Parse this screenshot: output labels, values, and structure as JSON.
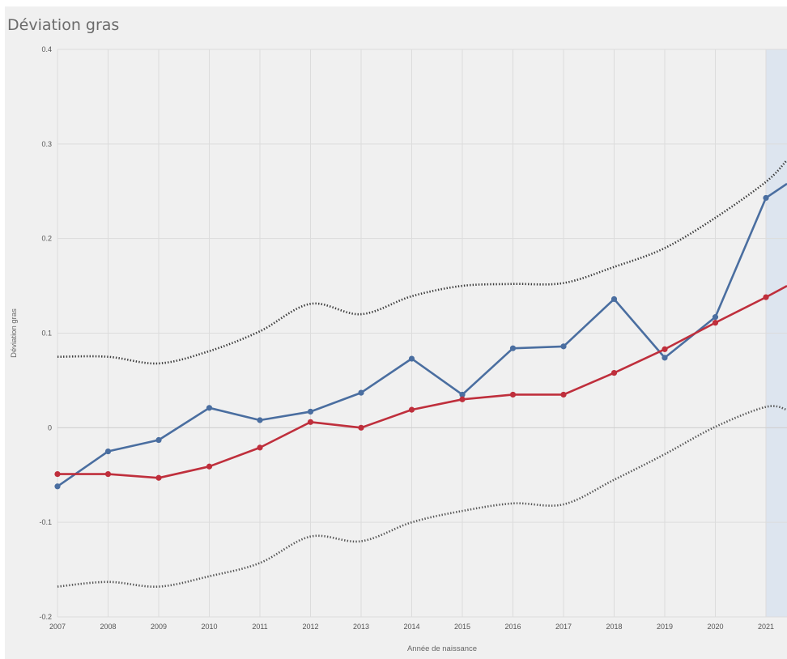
{
  "chart_data": {
    "type": "line",
    "title": "Déviation gras",
    "xlabel": "Année de naissance",
    "ylabel": "Déviation gras",
    "x": [
      "2007",
      "2008",
      "2009",
      "2010",
      "2011",
      "2012",
      "2013",
      "2014",
      "2015",
      "2016",
      "2017",
      "2018",
      "2019",
      "2020",
      "2021"
    ],
    "ylim": [
      -0.2,
      0.4
    ],
    "yticks": [
      "-0.2",
      "-0.1",
      "0",
      "0.1",
      "0.2",
      "0.3",
      "0.4"
    ],
    "grid": true,
    "highlight_last_category": true,
    "series": [
      {
        "color": "#4a6ea0",
        "style": "solid",
        "markers": true,
        "values": [
          -0.062,
          -0.025,
          -0.013,
          0.021,
          0.008,
          0.017,
          0.037,
          0.073,
          0.035,
          0.084,
          0.086,
          0.136,
          0.074,
          0.117,
          0.243
        ],
        "extends_to": 0.258
      },
      {
        "color": "#bf2f3c",
        "style": "solid",
        "markers": true,
        "values": [
          -0.049,
          -0.049,
          -0.053,
          -0.041,
          -0.021,
          0.006,
          0.0,
          0.019,
          0.03,
          0.035,
          0.035,
          0.058,
          0.083,
          0.111,
          0.138
        ],
        "extends_to": 0.15
      },
      {
        "color": "#3a3a3a",
        "style": "dotted",
        "markers": false,
        "values": [
          0.075,
          0.075,
          0.068,
          0.081,
          0.102,
          0.131,
          0.12,
          0.139,
          0.15,
          0.152,
          0.153,
          0.17,
          0.19,
          0.222,
          0.26
        ],
        "extends_to": 0.283
      },
      {
        "color": "#555555",
        "style": "dotted",
        "markers": false,
        "values": [
          -0.168,
          -0.163,
          -0.168,
          -0.157,
          -0.143,
          -0.115,
          -0.12,
          -0.1,
          -0.088,
          -0.08,
          -0.081,
          -0.055,
          -0.028,
          0.001,
          0.022
        ],
        "extends_to": 0.019
      }
    ]
  }
}
